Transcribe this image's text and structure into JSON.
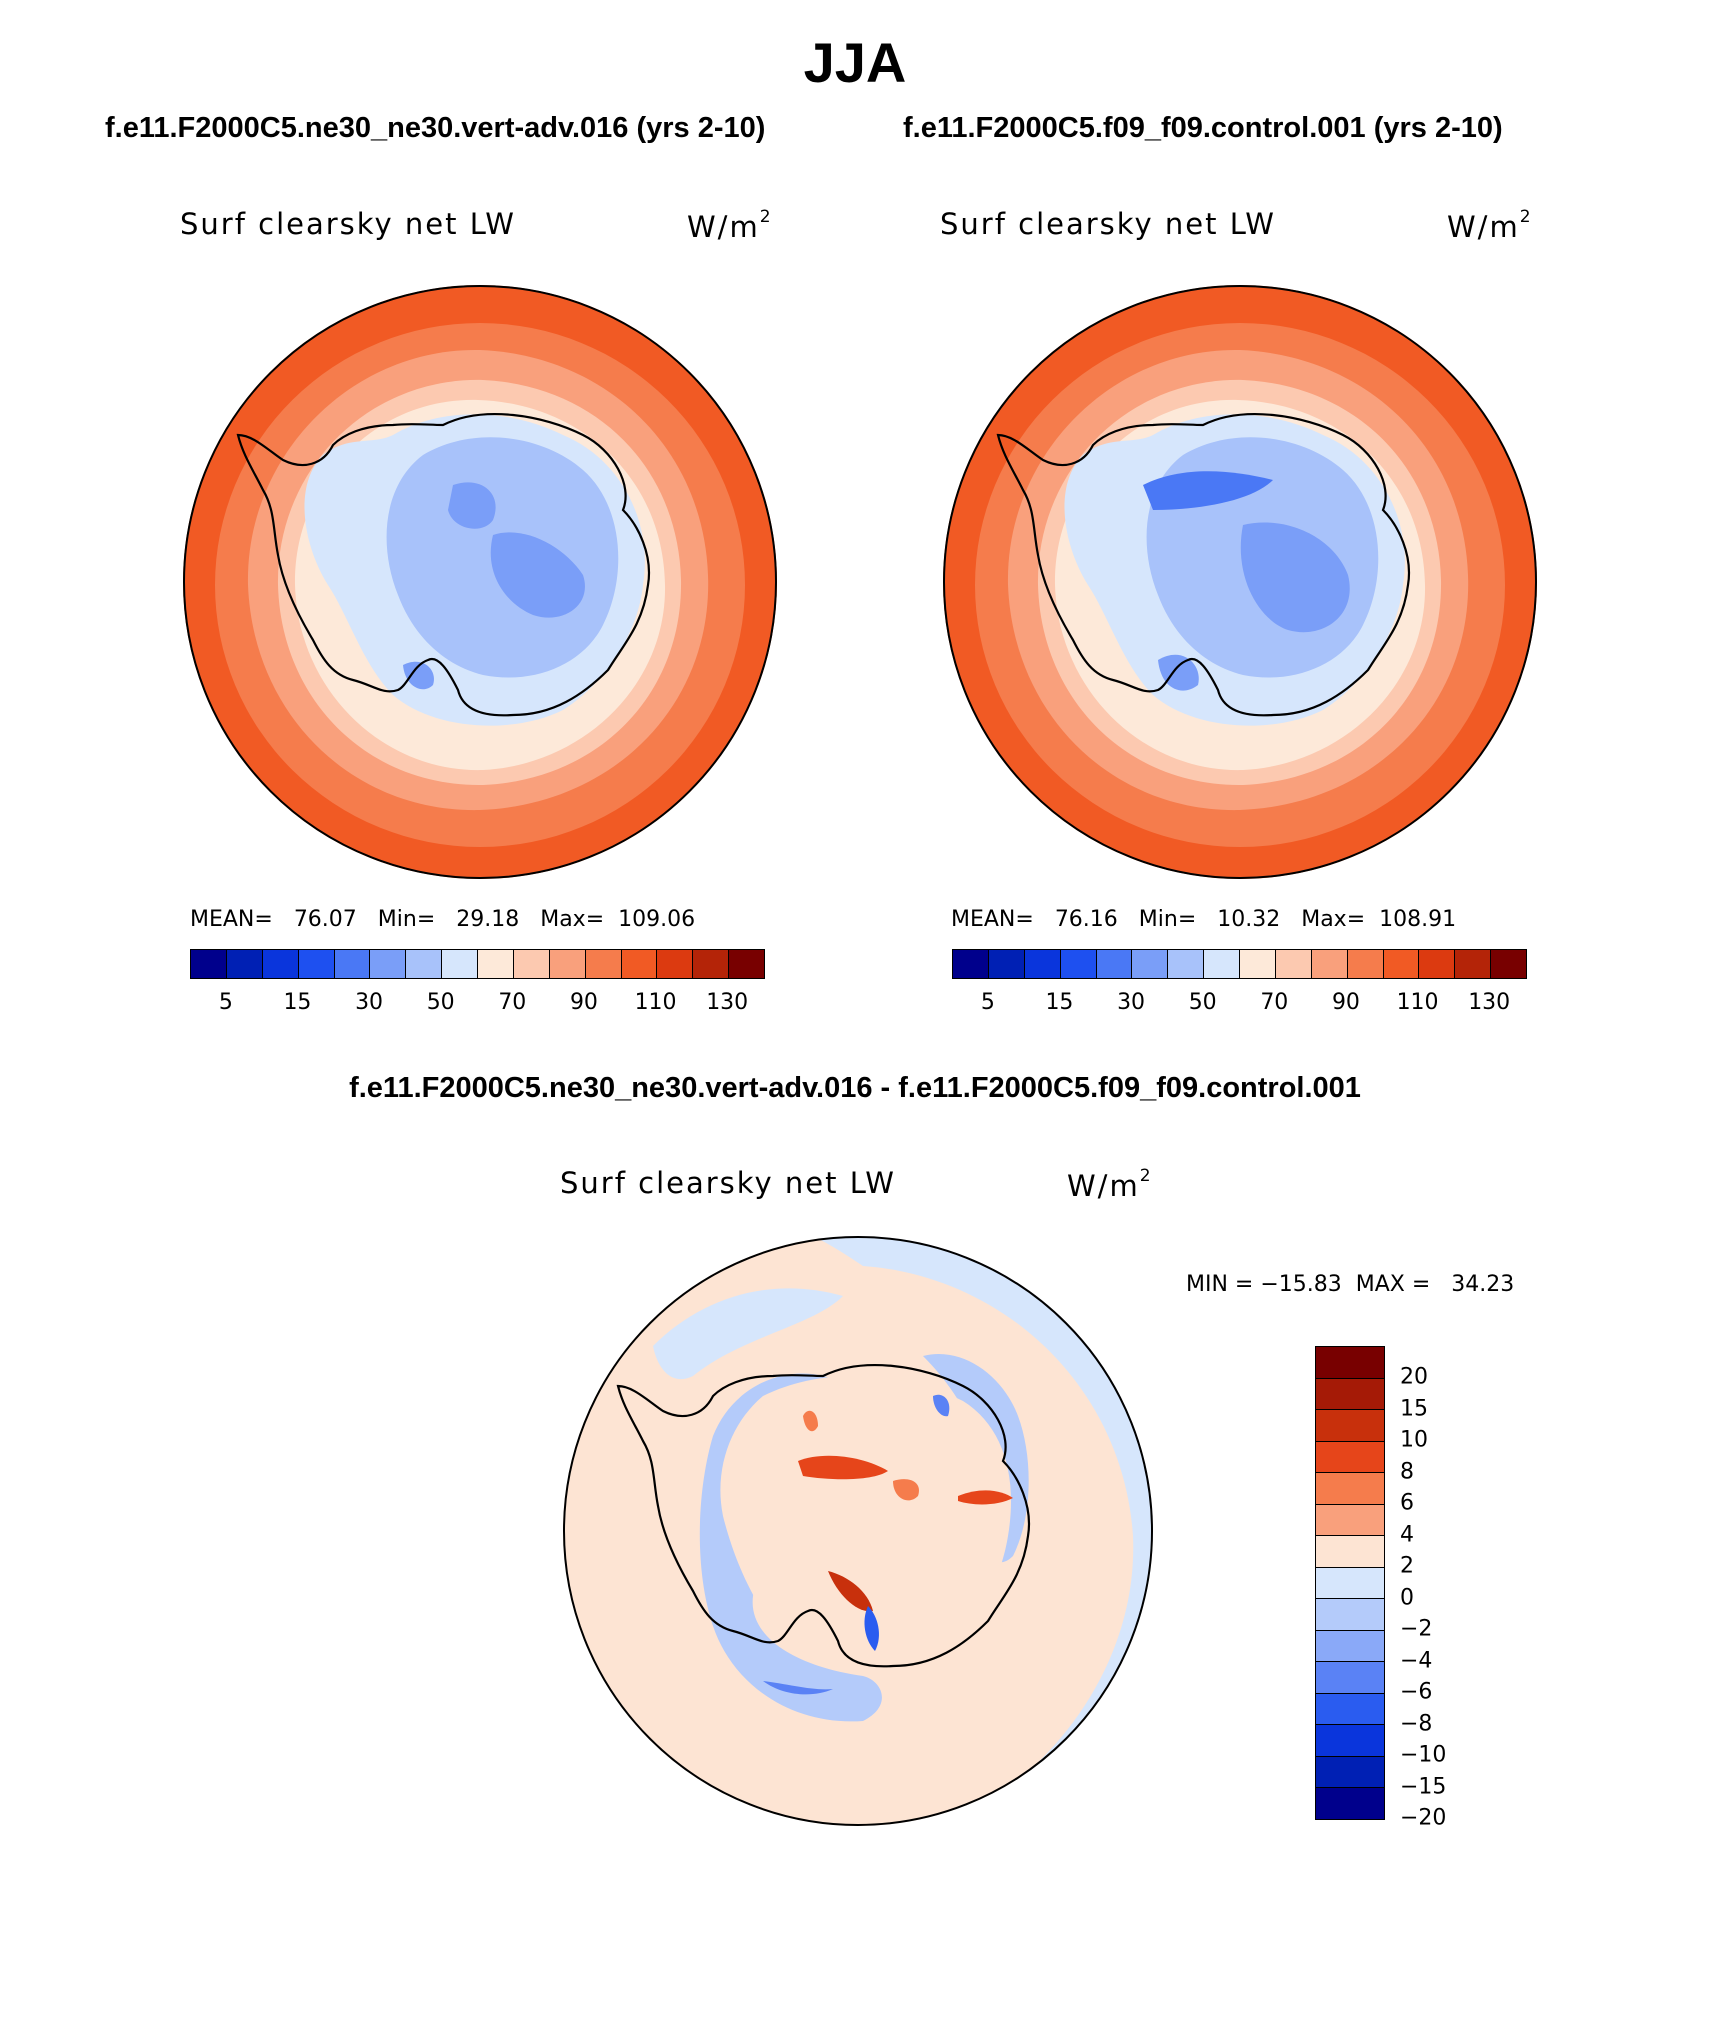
{
  "figure": {
    "title": "JJA",
    "left_case_title": "f.e11.F2000C5.ne30_ne30.vert-adv.016 (yrs 2-10)",
    "right_case_title": "f.e11.F2000C5.f09_f09.control.001 (yrs 2-10)",
    "diff_title": "f.e11.F2000C5.ne30_ne30.vert-adv.016 - f.e11.F2000C5.f09_f09.control.001"
  },
  "panels": {
    "left": {
      "variable": "Surf clearsky net LW",
      "units_base": "W/m",
      "units_exp": "2",
      "mean_label": "MEAN=",
      "mean": "76.07",
      "min_label": "Min=",
      "min": "29.18",
      "max_label": "Max=",
      "max": "109.06"
    },
    "right": {
      "variable": "Surf clearsky net LW",
      "units_base": "W/m",
      "units_exp": "2",
      "mean_label": "MEAN=",
      "mean": "76.16",
      "min_label": "Min=",
      "min": "10.32",
      "max_label": "Max=",
      "max": "108.91"
    },
    "diff": {
      "variable": "Surf clearsky net LW",
      "units_base": "W/m",
      "units_exp": "2",
      "minmax_text": "MIN = −15.83  MAX =   34.23"
    }
  },
  "colorbars": {
    "abs": {
      "colors": [
        "#00008c",
        "#0020b4",
        "#0a35dc",
        "#1e50f0",
        "#4a78f5",
        "#7a9ef8",
        "#a8c2fa",
        "#d6e6fc",
        "#fde9d9",
        "#fcc9b0",
        "#f9a07c",
        "#f57c4c",
        "#f15a24",
        "#dc3a10",
        "#b42408",
        "#780000"
      ],
      "tick_labels": [
        "5",
        "15",
        "30",
        "50",
        "70",
        "90",
        "110",
        "130"
      ]
    },
    "diff": {
      "colors_top_to_bottom": [
        "#780000",
        "#a51a06",
        "#c8300c",
        "#e6451a",
        "#f57c4c",
        "#f9a07c",
        "#fde4d3",
        "#d6e6fc",
        "#b4cbfa",
        "#8aa9f8",
        "#5a82f5",
        "#2a5cf0",
        "#0a35dc",
        "#0020b4",
        "#00008c"
      ],
      "tick_labels": [
        "20",
        "15",
        "10",
        "8",
        "6",
        "4",
        "2",
        "0",
        "−2",
        "−4",
        "−6",
        "−8",
        "−10",
        "−15",
        "−20"
      ]
    }
  },
  "colors": {
    "ocean_abs": "#f15a24",
    "ocean_abs_warm": "#f57c4c",
    "ring_abs": "#f9a07c",
    "ring_abs_light": "#fcc9b0",
    "coast_abs": "#fde9d9",
    "land_abs": "#d6e6fc",
    "interior_abs": "#a8c2fa",
    "plateau_abs": "#7a9ef8",
    "ocean_diff": "#fde4d3",
    "near_diff": "#d6e6fc",
    "neg_diff": "#b4cbfa",
    "pos_diff": "#e6451a",
    "neg_strong_diff": "#2a5cf0"
  }
}
